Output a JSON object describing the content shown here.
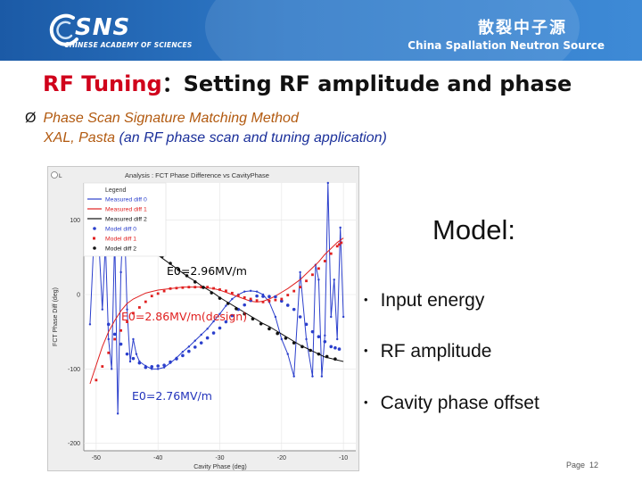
{
  "header": {
    "logo_text": "SNS",
    "logo_subtitle": "CHINESE ACADEMY OF SCIENCES",
    "cn_name": "散裂中子源",
    "en_name": "China Spallation Neutron Source"
  },
  "title": {
    "red": "RF Tuning",
    "sep": "：",
    "rest": "Setting RF amplitude and phase"
  },
  "bullet": {
    "arrow": "Ø",
    "method": "Phase Scan Signature Matching Method",
    "apps": "XAL, Pasta",
    "apps_desc": "(an RF phase scan and tuning application)"
  },
  "plot": {
    "window_title": "Analysis : FCT Phase Difference vs CavityPhase",
    "corner_label": "L",
    "ylabel": "FCT Phase Diff (deg)",
    "xlabel": "Cavity Phase (deg)",
    "y_ticks": [
      "100",
      "0",
      "-100",
      "-200"
    ],
    "x_ticks": [
      "-50",
      "-40",
      "-30",
      "-20",
      "-10"
    ],
    "legend_title": "Legend",
    "legend": [
      "Measured diff 0",
      "Measured diff 1",
      "Measured diff 2",
      "Model diff 0",
      "Model diff 1",
      "Model diff 2"
    ],
    "annotations": [
      "E0=2.96MV/m",
      "E0=2.86MV/m(design)",
      "E0=2.76MV/m"
    ],
    "colors": {
      "series_blue": "#2b3fcc",
      "series_red": "#e02020",
      "series_black": "#111111",
      "annot_black": "#000000",
      "annot_red": "#e02020",
      "annot_blue": "#2233bb"
    }
  },
  "chart_data": {
    "type": "line",
    "xlabel": "Cavity Phase (deg)",
    "ylabel": "FCT Phase Diff (deg)",
    "xlim": [
      -52,
      -8
    ],
    "ylim": [
      -210,
      150
    ],
    "series": [
      {
        "name": "Measured diff 0",
        "color": "#2b3fcc",
        "x": [
          -51,
          -50,
          -49,
          -48.5,
          -48,
          -47.5,
          -47,
          -46.5,
          -46,
          -45.5,
          -45,
          -44.5,
          -44,
          -43.5,
          -43,
          -42,
          -41,
          -40,
          -39,
          -38,
          -37,
          -36,
          -35,
          -34,
          -33,
          -32,
          -31,
          -30,
          -29,
          -28,
          -27,
          -26,
          -25,
          -24,
          -23,
          -22,
          -21,
          -20,
          -19,
          -18,
          -17,
          -16,
          -15,
          -14.5,
          -14,
          -13.5,
          -13,
          -12.5,
          -12,
          -11.5,
          -11,
          -10.5,
          -10
        ],
        "y": [
          -40,
          140,
          -20,
          70,
          -60,
          -100,
          80,
          -160,
          30,
          120,
          -20,
          -90,
          -60,
          -80,
          -90,
          -96,
          -100,
          -100,
          -98,
          -92,
          -85,
          -77,
          -70,
          -62,
          -54,
          -46,
          -36,
          -26,
          -15,
          -6,
          0,
          4,
          5,
          4,
          0,
          -10,
          -30,
          -60,
          -80,
          -110,
          30,
          -60,
          -110,
          40,
          20,
          -110,
          -55,
          150,
          -30,
          20,
          -60,
          90,
          -30
        ]
      },
      {
        "name": "Measured diff 1",
        "color": "#e02020",
        "x": [
          -51,
          -50,
          -49,
          -48,
          -47,
          -46,
          -45,
          -44,
          -43,
          -42,
          -41,
          -40,
          -39,
          -38,
          -37,
          -36,
          -35,
          -34,
          -33,
          -32,
          -31,
          -30,
          -29,
          -28,
          -27,
          -26,
          -25,
          -24,
          -23,
          -22,
          -21,
          -20,
          -19,
          -18,
          -17,
          -16,
          -15,
          -14,
          -13,
          -12,
          -11,
          -10
        ],
        "y": [
          -120,
          -95,
          -70,
          -50,
          -35,
          -22,
          -12,
          -6,
          -2,
          2,
          4,
          6,
          7,
          8,
          9,
          10,
          10,
          10,
          10,
          9,
          8,
          6,
          3,
          0,
          -3,
          -6,
          -9,
          -10,
          -9,
          -6,
          -2,
          3,
          8,
          14,
          20,
          28,
          36,
          44,
          54,
          62,
          70,
          76
        ]
      },
      {
        "name": "Measured diff 2",
        "color": "#111111",
        "x": [
          -50,
          -49,
          -48,
          -47,
          -46,
          -45,
          -44,
          -43,
          -42,
          -41,
          -40,
          -39,
          -38,
          -37,
          -36,
          -35,
          -34,
          -33,
          -32,
          -31,
          -30,
          -29,
          -28,
          -27,
          -26,
          -25,
          -24,
          -23,
          -22,
          -21,
          -20,
          -19,
          -18,
          -17,
          -16,
          -15,
          -14,
          -13,
          -12,
          -11,
          -10
        ],
        "y": [
          140,
          128,
          118,
          108,
          98,
          90,
          82,
          74,
          67,
          60,
          53,
          47,
          41,
          35,
          29,
          23,
          18,
          12,
          7,
          2,
          -4,
          -9,
          -14,
          -19,
          -24,
          -29,
          -34,
          -39,
          -43,
          -48,
          -53,
          -58,
          -63,
          -68,
          -72,
          -76,
          -80,
          -84,
          -86,
          -88,
          -90
        ]
      },
      {
        "name": "Model diff 0",
        "color": "#2b3fcc",
        "x": [
          -48,
          -45,
          -42,
          -39,
          -36,
          -33,
          -30,
          -27,
          -24,
          -21,
          -18,
          -15,
          -12,
          -10
        ],
        "y": [
          -40,
          -80,
          -98,
          -95,
          -82,
          -65,
          -45,
          -20,
          -2,
          -3,
          -20,
          -50,
          -70,
          -75
        ]
      },
      {
        "name": "Model diff 1",
        "color": "#e02020",
        "x": [
          -50,
          -47,
          -44,
          -41,
          -38,
          -35,
          -32,
          -29,
          -26,
          -23,
          -20,
          -17,
          -14,
          -11,
          -10
        ],
        "y": [
          -115,
          -60,
          -25,
          -2,
          8,
          10,
          10,
          5,
          -4,
          -10,
          -6,
          10,
          35,
          65,
          72
        ]
      },
      {
        "name": "Model diff 2",
        "color": "#111111",
        "x": [
          -50,
          -46,
          -42,
          -38,
          -34,
          -30,
          -26,
          -22,
          -18,
          -14,
          -10
        ],
        "y": [
          135,
          100,
          70,
          42,
          17,
          -5,
          -26,
          -46,
          -65,
          -80,
          -90
        ]
      }
    ]
  },
  "model": {
    "title": "Model:",
    "bullet_glyph": "•",
    "items": [
      "Input energy",
      "RF amplitude",
      "Cavity phase offset"
    ]
  },
  "page": {
    "label": "Page",
    "number": "12"
  }
}
